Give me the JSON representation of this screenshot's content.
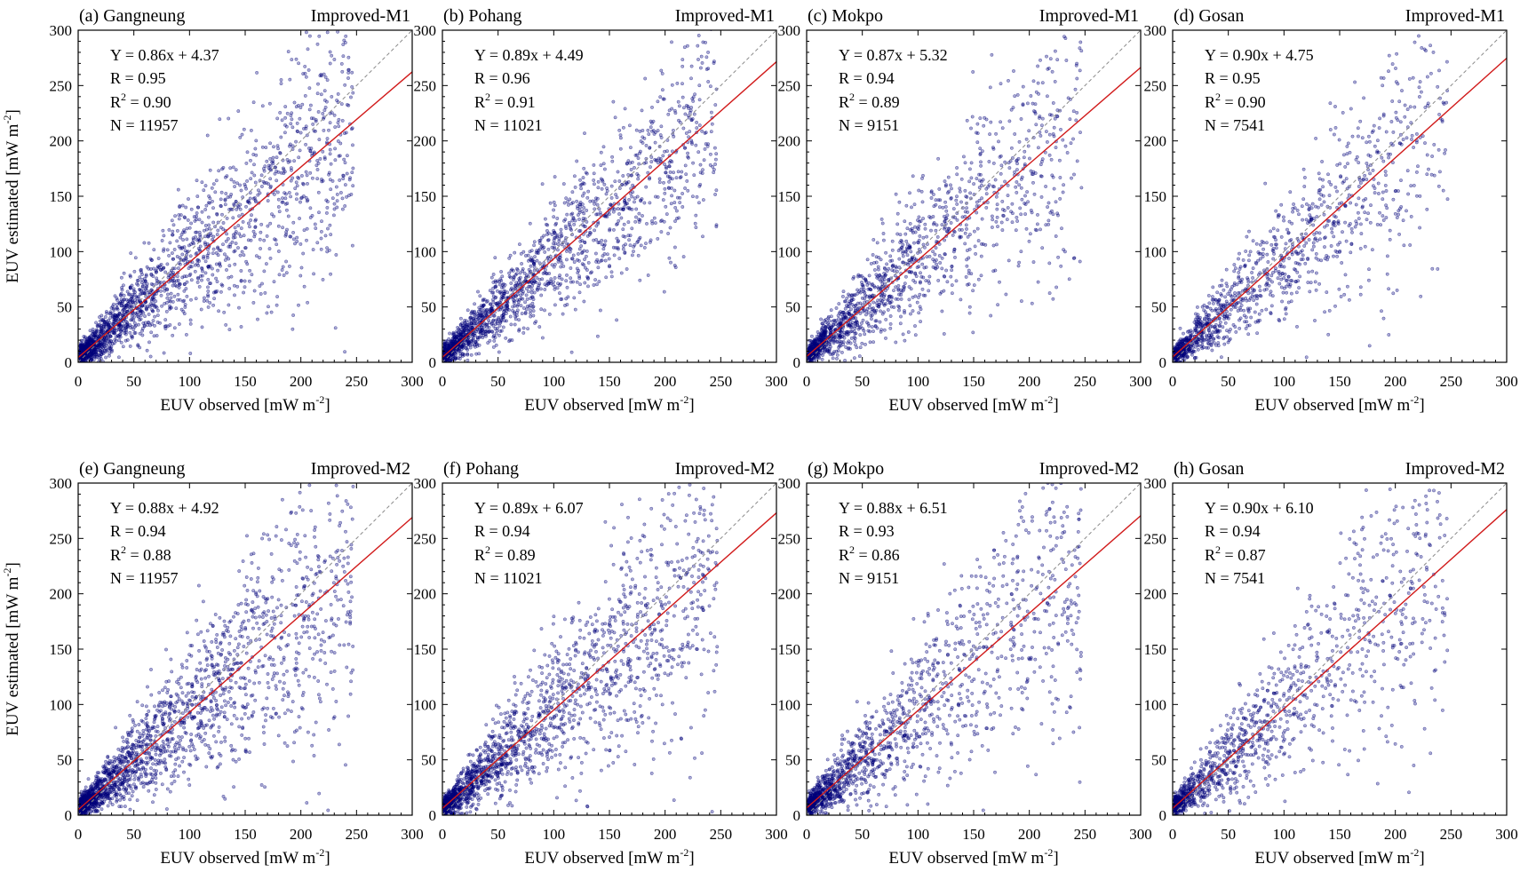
{
  "chart_data": [
    {
      "type": "scatter",
      "panel_label": "(a) Gangneung",
      "model": "Improved-M1",
      "equation": "Y = 0.86x + 4.37",
      "r": "R = 0.95",
      "r2_prefix": "R",
      "r2_value": " = 0.90",
      "n": "N = 11957",
      "slope": 0.86,
      "intercept": 4.37,
      "R": 0.95,
      "N": 11957,
      "spread": 0.26,
      "xlim": [
        0,
        300
      ],
      "ylim": [
        0,
        300
      ],
      "xticks": [
        0,
        50,
        100,
        150,
        200,
        250,
        300
      ],
      "yticks": [
        0,
        50,
        100,
        150,
        200,
        250,
        300
      ],
      "xlabel": "EUV observed [mW m",
      "xlabel_sup": "-2",
      "xlabel_end": "]",
      "ylabel": "EUV estimated [mW m",
      "ylabel_sup": "-2",
      "ylabel_end": "]",
      "one_to_one": true
    },
    {
      "type": "scatter",
      "panel_label": "(b) Pohang",
      "model": "Improved-M1",
      "equation": "Y = 0.89x + 4.49",
      "r": "R = 0.96",
      "r2_prefix": "R",
      "r2_value": " = 0.91",
      "n": "N = 11021",
      "slope": 0.89,
      "intercept": 4.49,
      "R": 0.96,
      "N": 11021,
      "spread": 0.22,
      "xlim": [
        0,
        300
      ],
      "ylim": [
        0,
        300
      ],
      "xticks": [
        0,
        50,
        100,
        150,
        200,
        250,
        300
      ],
      "yticks": [
        0,
        50,
        100,
        150,
        200,
        250,
        300
      ],
      "xlabel": "EUV observed [mW m",
      "xlabel_sup": "-2",
      "xlabel_end": "]",
      "ylabel": "EUV estimated [mW m",
      "ylabel_sup": "-2",
      "ylabel_end": "]",
      "one_to_one": true
    },
    {
      "type": "scatter",
      "panel_label": "(c) Mokpo",
      "model": "Improved-M1",
      "equation": "Y = 0.87x + 5.32",
      "r": "R = 0.94",
      "r2_prefix": "R",
      "r2_value": " = 0.89",
      "n": "N = 9151",
      "slope": 0.87,
      "intercept": 5.32,
      "R": 0.94,
      "N": 9151,
      "spread": 0.28,
      "xlim": [
        0,
        300
      ],
      "ylim": [
        0,
        300
      ],
      "xticks": [
        0,
        50,
        100,
        150,
        200,
        250,
        300
      ],
      "yticks": [
        0,
        50,
        100,
        150,
        200,
        250,
        300
      ],
      "xlabel": "EUV observed [mW m",
      "xlabel_sup": "-2",
      "xlabel_end": "]",
      "ylabel": "EUV estimated [mW m",
      "ylabel_sup": "-2",
      "ylabel_end": "]",
      "one_to_one": true
    },
    {
      "type": "scatter",
      "panel_label": "(d) Gosan",
      "model": "Improved-M1",
      "equation": "Y = 0.90x + 4.75",
      "r": "R = 0.95",
      "r2_prefix": "R",
      "r2_value": " = 0.90",
      "n": "N = 7541",
      "slope": 0.9,
      "intercept": 4.75,
      "R": 0.95,
      "N": 7541,
      "spread": 0.25,
      "xlim": [
        0,
        300
      ],
      "ylim": [
        0,
        300
      ],
      "xticks": [
        0,
        50,
        100,
        150,
        200,
        250,
        300
      ],
      "yticks": [
        0,
        50,
        100,
        150,
        200,
        250,
        300
      ],
      "xlabel": "EUV observed [mW m",
      "xlabel_sup": "-2",
      "xlabel_end": "]",
      "ylabel": "EUV estimated [mW m",
      "ylabel_sup": "-2",
      "ylabel_end": "]",
      "one_to_one": true
    },
    {
      "type": "scatter",
      "panel_label": "(e) Gangneung",
      "model": "Improved-M2",
      "equation": "Y = 0.88x + 4.92",
      "r": "R = 0.94",
      "r2_prefix": "R",
      "r2_value": " = 0.88",
      "n": "N = 11957",
      "slope": 0.88,
      "intercept": 4.92,
      "R": 0.94,
      "N": 11957,
      "spread": 0.28,
      "xlim": [
        0,
        300
      ],
      "ylim": [
        0,
        300
      ],
      "xticks": [
        0,
        50,
        100,
        150,
        200,
        250,
        300
      ],
      "yticks": [
        0,
        50,
        100,
        150,
        200,
        250,
        300
      ],
      "xlabel": "EUV observed [mW m",
      "xlabel_sup": "-2",
      "xlabel_end": "]",
      "ylabel": "EUV estimated [mW m",
      "ylabel_sup": "-2",
      "ylabel_end": "]",
      "one_to_one": true
    },
    {
      "type": "scatter",
      "panel_label": "(f) Pohang",
      "model": "Improved-M2",
      "equation": "Y = 0.89x + 6.07",
      "r": "R = 0.94",
      "r2_prefix": "R",
      "r2_value": " = 0.89",
      "n": "N = 11021",
      "slope": 0.89,
      "intercept": 6.07,
      "R": 0.94,
      "N": 11021,
      "spread": 0.27,
      "xlim": [
        0,
        300
      ],
      "ylim": [
        0,
        300
      ],
      "xticks": [
        0,
        50,
        100,
        150,
        200,
        250,
        300
      ],
      "yticks": [
        0,
        50,
        100,
        150,
        200,
        250,
        300
      ],
      "xlabel": "EUV observed [mW m",
      "xlabel_sup": "-2",
      "xlabel_end": "]",
      "ylabel": "EUV estimated [mW m",
      "ylabel_sup": "-2",
      "ylabel_end": "]",
      "one_to_one": true
    },
    {
      "type": "scatter",
      "panel_label": "(g) Mokpo",
      "model": "Improved-M2",
      "equation": "Y = 0.88x + 6.51",
      "r": "R = 0.93",
      "r2_prefix": "R",
      "r2_value": " = 0.86",
      "n": "N = 9151",
      "slope": 0.88,
      "intercept": 6.51,
      "R": 0.93,
      "N": 9151,
      "spread": 0.31,
      "xlim": [
        0,
        300
      ],
      "ylim": [
        0,
        300
      ],
      "xticks": [
        0,
        50,
        100,
        150,
        200,
        250,
        300
      ],
      "yticks": [
        0,
        50,
        100,
        150,
        200,
        250,
        300
      ],
      "xlabel": "EUV observed [mW m",
      "xlabel_sup": "-2",
      "xlabel_end": "]",
      "ylabel": "EUV estimated [mW m",
      "ylabel_sup": "-2",
      "ylabel_end": "]",
      "one_to_one": true
    },
    {
      "type": "scatter",
      "panel_label": "(h) Gosan",
      "model": "Improved-M2",
      "equation": "Y = 0.90x + 6.10",
      "r": "R = 0.94",
      "r2_prefix": "R",
      "r2_value": " = 0.87",
      "n": "N = 7541",
      "slope": 0.9,
      "intercept": 6.1,
      "R": 0.94,
      "N": 7541,
      "spread": 0.29,
      "xlim": [
        0,
        300
      ],
      "ylim": [
        0,
        300
      ],
      "xticks": [
        0,
        50,
        100,
        150,
        200,
        250,
        300
      ],
      "yticks": [
        0,
        50,
        100,
        150,
        200,
        250,
        300
      ],
      "xlabel": "EUV observed [mW m",
      "xlabel_sup": "-2",
      "xlabel_end": "]",
      "ylabel": "EUV estimated [mW m",
      "ylabel_sup": "-2",
      "ylabel_end": "]",
      "one_to_one": true
    }
  ],
  "colors": {
    "points": "#00007a",
    "fit_line": "#d11a1a",
    "one_to_one": "#888888"
  }
}
